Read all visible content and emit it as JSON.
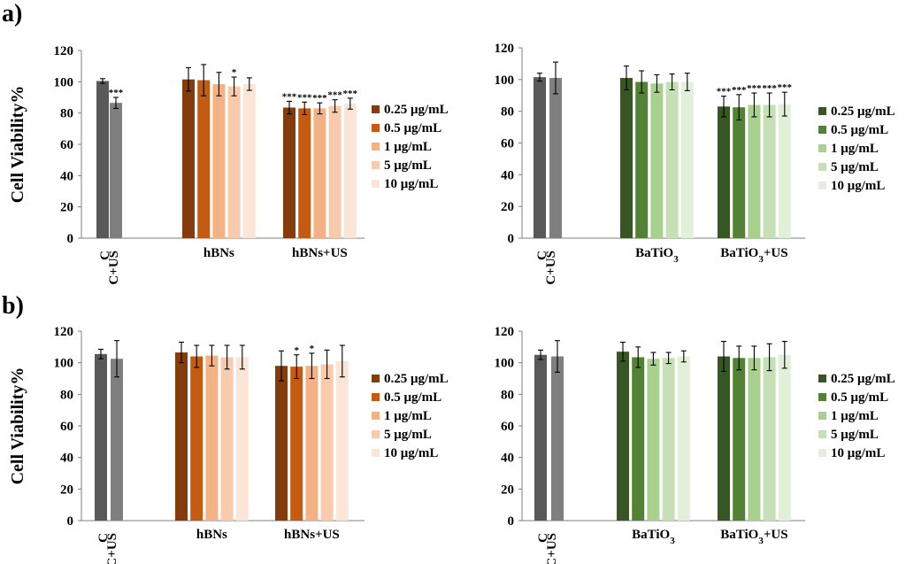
{
  "panel_labels": [
    "a)",
    "b)"
  ],
  "y_axis_label": "Cell Viability%",
  "legend_labels": [
    "0.25 μg/mL",
    "0.5 μg/mL",
    "1 μg/mL",
    "5 μg/mL",
    "10 μg/mL"
  ],
  "colors": {
    "control": "#595959",
    "control_us": "#7f7f7f",
    "orange": [
      "#843c0c",
      "#c55a11",
      "#f4b183",
      "#f8cbad",
      "#fbe5d6"
    ],
    "green": [
      "#375623",
      "#548235",
      "#a9d18e",
      "#c5e0b4",
      "#e2f0d9"
    ]
  },
  "chart_data": [
    {
      "id": "a-left",
      "panel": "a)",
      "type": "bar",
      "palette": "orange",
      "ylabel": "Cell Viability%",
      "ylim": [
        0,
        120
      ],
      "yticks": [
        0,
        20,
        40,
        60,
        80,
        100,
        120
      ],
      "control": {
        "labels": [
          "C",
          "C+US"
        ],
        "values": [
          100.5,
          86.5
        ],
        "errors": [
          1.5,
          3.5
        ],
        "sig": [
          "",
          "***"
        ]
      },
      "groups": [
        {
          "label": "hBNs",
          "values": [
            101.5,
            101,
            98.5,
            97,
            98.5
          ],
          "errors": [
            7.5,
            10,
            7.5,
            6,
            4
          ],
          "sig": [
            "",
            "",
            "",
            "*",
            ""
          ]
        },
        {
          "label": "hBNs+US",
          "values": [
            83.5,
            83,
            83,
            84.5,
            86
          ],
          "errors": [
            4,
            4,
            3.5,
            4,
            3.5
          ],
          "sig": [
            "***",
            "***",
            "***",
            "***",
            "***"
          ]
        }
      ]
    },
    {
      "id": "a-right",
      "panel": "a)",
      "type": "bar",
      "palette": "green",
      "ylabel": "",
      "ylim": [
        0,
        120
      ],
      "yticks": [
        0,
        20,
        40,
        60,
        80,
        100,
        120
      ],
      "control": {
        "labels": [
          "C",
          "C+US"
        ],
        "values": [
          101.5,
          101
        ],
        "errors": [
          2.5,
          10
        ],
        "sig": [
          "",
          ""
        ]
      },
      "groups": [
        {
          "label": "BaTiO3",
          "values": [
            101,
            98.5,
            97.5,
            98.5,
            98.5
          ],
          "errors": [
            7.5,
            7,
            5.5,
            5,
            5.5
          ],
          "sig": [
            "",
            "",
            "",
            "",
            ""
          ]
        },
        {
          "label": "BaTiO3+US",
          "values": [
            83,
            82.5,
            84,
            84,
            84.5
          ],
          "errors": [
            6.5,
            8,
            7.5,
            7.5,
            7.5
          ],
          "sig": [
            "***",
            "***",
            "***",
            "***",
            "***"
          ]
        }
      ]
    },
    {
      "id": "b-left",
      "panel": "b)",
      "type": "bar",
      "palette": "orange",
      "ylabel": "Cell Viability%",
      "ylim": [
        0,
        120
      ],
      "yticks": [
        0,
        20,
        40,
        60,
        80,
        100,
        120
      ],
      "control": {
        "labels": [
          "C",
          "C+US"
        ],
        "values": [
          105.5,
          102.5
        ],
        "errors": [
          3,
          11.5
        ],
        "sig": [
          "",
          ""
        ]
      },
      "groups": [
        {
          "label": "hBNs",
          "values": [
            106.5,
            104,
            104.5,
            103.5,
            103.5
          ],
          "errors": [
            6.5,
            7,
            6.5,
            7.5,
            7.5
          ],
          "sig": [
            "",
            "",
            "",
            "",
            ""
          ]
        },
        {
          "label": "hBNs+US",
          "values": [
            98,
            97.5,
            98,
            99,
            101
          ],
          "errors": [
            9.5,
            7.5,
            8,
            9,
            10
          ],
          "sig": [
            "",
            "*",
            "*",
            "",
            ""
          ]
        }
      ]
    },
    {
      "id": "b-right",
      "panel": "b)",
      "type": "bar",
      "palette": "green",
      "ylabel": "",
      "ylim": [
        0,
        120
      ],
      "yticks": [
        0,
        20,
        40,
        60,
        80,
        100,
        120
      ],
      "control": {
        "labels": [
          "C",
          "C+US"
        ],
        "values": [
          105,
          104
        ],
        "errors": [
          3,
          10
        ],
        "sig": [
          "",
          ""
        ]
      },
      "groups": [
        {
          "label": "BaTiO3",
          "values": [
            107,
            103.5,
            102.5,
            103,
            104
          ],
          "errors": [
            6,
            6.5,
            4,
            3.5,
            3.5
          ],
          "sig": [
            "",
            "",
            "",
            "",
            ""
          ]
        },
        {
          "label": "BaTiO3+US",
          "values": [
            104,
            103,
            103,
            103.5,
            105
          ],
          "errors": [
            9.5,
            7.5,
            7.5,
            8.5,
            8.5
          ],
          "sig": [
            "",
            "",
            "",
            "",
            ""
          ]
        }
      ]
    }
  ]
}
